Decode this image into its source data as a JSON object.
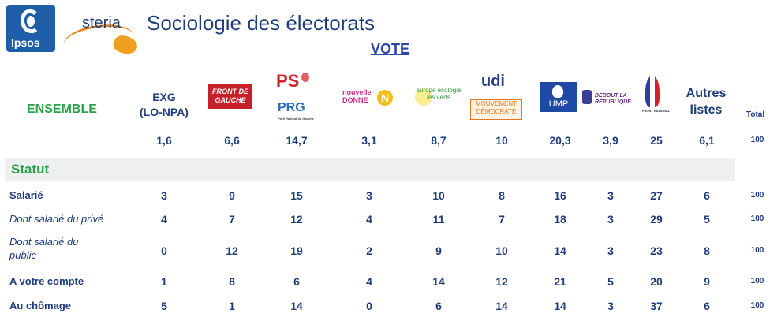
{
  "header": {
    "title": "Sociologie des électorats",
    "vote_label": "VOTE",
    "ipsos_word": "Ipsos",
    "steria_word": "steria"
  },
  "columns": {
    "ensemble_label": "ENSEMBLE",
    "exg_label": "EXG",
    "exg_sub": "(LO-NPA)",
    "front_de_gauche": "FRONT DE GAUCHE",
    "ps": "PS",
    "prg": "PRG",
    "prg_sub": "Parti Radical de Gauche",
    "nouvelle_donne": "nouvelle DONNE",
    "eelv": "europe écologie les verts",
    "udi": "udi",
    "modem": "MOUVEMENT DÉMOCRATE",
    "ump": "UMP",
    "dlr": "DEBOUT LA RÉPUBLIQUE",
    "fn": "FRONT NATIONAL",
    "autres_line1": "Autres",
    "autres_line2": "listes",
    "total_label": "Total"
  },
  "ensemble_values": [
    "1,6",
    "6,6",
    "14,7",
    "3,1",
    "8,7",
    "10",
    "20,3",
    "3,9",
    "25",
    "6,1",
    "100"
  ],
  "section_statut": "Statut",
  "rows": [
    {
      "label": "Salarié",
      "values": [
        "3",
        "9",
        "15",
        "3",
        "10",
        "8",
        "16",
        "3",
        "27",
        "6",
        "100"
      ]
    },
    {
      "label": "Dont salarié du privé",
      "values": [
        "4",
        "7",
        "12",
        "4",
        "11",
        "7",
        "18",
        "3",
        "29",
        "5",
        "100"
      ]
    },
    {
      "label_line1": "Dont salarié du",
      "label_line2": "public",
      "values": [
        "0",
        "12",
        "19",
        "2",
        "9",
        "10",
        "14",
        "3",
        "23",
        "8",
        "100"
      ]
    },
    {
      "label": "A votre compte",
      "values": [
        "1",
        "8",
        "6",
        "4",
        "14",
        "12",
        "21",
        "5",
        "20",
        "9",
        "100"
      ]
    },
    {
      "label": "Au chômage",
      "values": [
        "5",
        "1",
        "14",
        "0",
        "6",
        "14",
        "14",
        "3",
        "37",
        "6",
        "100"
      ]
    }
  ]
}
